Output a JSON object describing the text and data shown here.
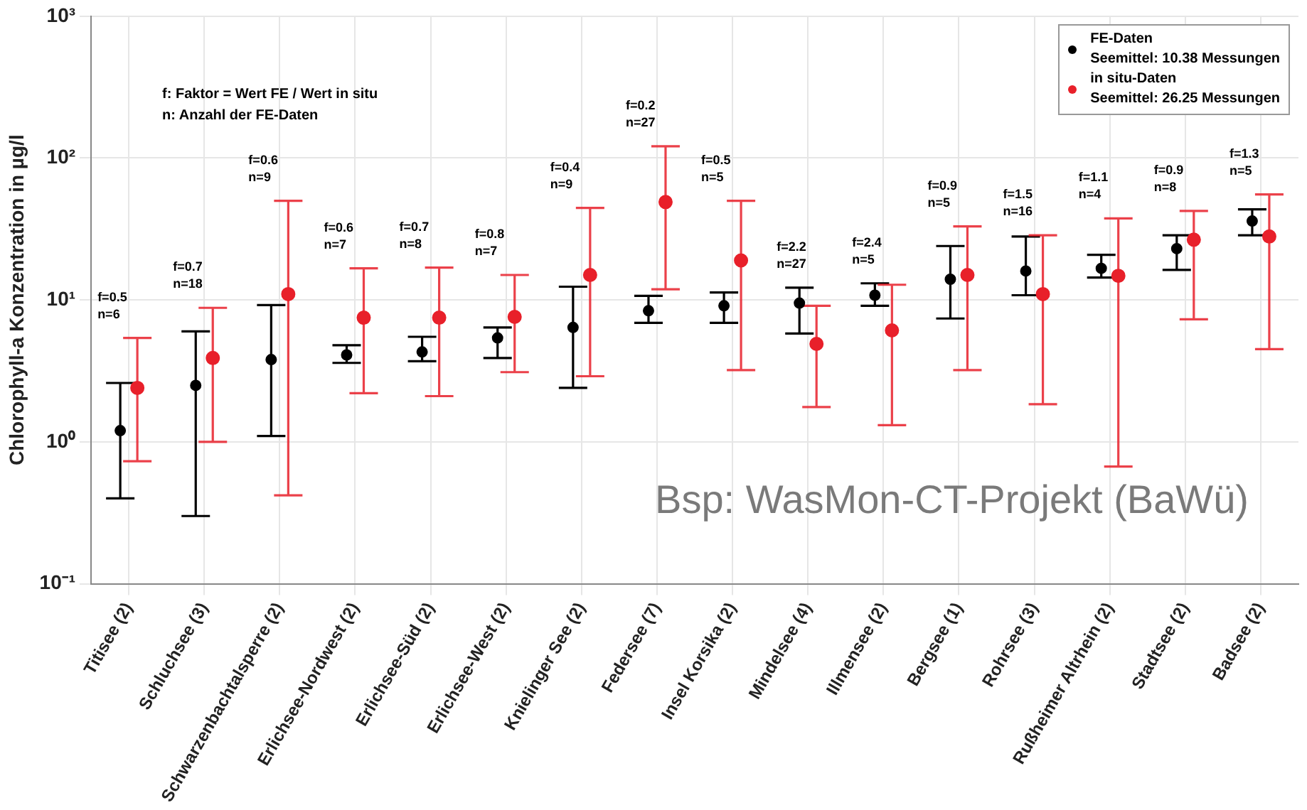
{
  "chart_data": {
    "type": "scatter",
    "ylabel": "Chlorophyll-a Konzentration in µg/l",
    "categories": [
      "Titisee (2)",
      "Schluchsee (3)",
      "Schwarzenbachtalsperre (2)",
      "Erlichsee-Nordwest (2)",
      "Erlichsee-Süd (2)",
      "Erlichsee-West (2)",
      "Knielinger See (2)",
      "Federsee (7)",
      "Insel Korsika (2)",
      "Mindelsee (4)",
      "Illmensee (2)",
      "Bergsee (1)",
      "Rohrsee (3)",
      "Rußheimer Altrhein (2)",
      "Stadtsee (2)",
      "Badsee (2)"
    ],
    "series": [
      {
        "name": "FE-Daten\nSeemittel: 10.38 Messungen",
        "color": "#000000",
        "values": [
          1.2,
          2.5,
          3.8,
          4.1,
          4.3,
          5.4,
          6.4,
          8.4,
          9.1,
          9.5,
          10.8,
          14,
          16,
          16.7,
          23,
          36
        ],
        "errors": [
          [
            0.4,
            2.6
          ],
          [
            0.3,
            6
          ],
          [
            1.1,
            9.2
          ],
          [
            3.6,
            4.8
          ],
          [
            3.7,
            5.5
          ],
          [
            3.9,
            6.4
          ],
          [
            2.4,
            12.4
          ],
          [
            6.9,
            10.7
          ],
          [
            6.9,
            11.3
          ],
          [
            5.8,
            12.2
          ],
          [
            9.1,
            13.1
          ],
          [
            7.4,
            24
          ],
          [
            10.8,
            28
          ],
          [
            14.4,
            20.8
          ],
          [
            16.3,
            28.6
          ],
          [
            28.6,
            43.5
          ]
        ]
      },
      {
        "name": "in situ-Daten\nSeemittel: 26.25 Messungen",
        "color": "#e8202a",
        "values": [
          2.4,
          3.9,
          11,
          7.5,
          7.5,
          7.6,
          15,
          49,
          19,
          4.9,
          6.1,
          15,
          11,
          14.8,
          26.6,
          28
        ],
        "errors": [
          [
            0.73,
            5.4
          ],
          [
            1,
            8.8
          ],
          [
            0.42,
            50
          ],
          [
            2.2,
            16.7
          ],
          [
            2.1,
            16.9
          ],
          [
            3.1,
            15
          ],
          [
            2.9,
            44.5
          ],
          [
            11.9,
            121
          ],
          [
            3.2,
            50
          ],
          [
            1.76,
            9.1
          ],
          [
            1.31,
            12.8
          ],
          [
            3.2,
            33
          ],
          [
            1.84,
            28.6
          ],
          [
            0.67,
            37.6
          ],
          [
            7.3,
            42.4
          ],
          [
            4.5,
            55.5
          ]
        ]
      }
    ],
    "log": "y",
    "ylim": [
      0.1,
      1000
    ],
    "yticks": [
      {
        "value": 0.1,
        "label": "10⁻¹"
      },
      {
        "value": 1,
        "label": "10⁰"
      },
      {
        "value": 10,
        "label": "10¹"
      },
      {
        "value": 100,
        "label": "10²"
      },
      {
        "value": 1000,
        "label": "10³"
      }
    ],
    "grid": true,
    "legend": "top right",
    "marker": "circle",
    "annotations": [
      "f: Faktor = Wert FE / Wert in situ\nn: Anzahl der FE-Daten",
      "Bsp: WasMon-CT-Projekt (BaWü)",
      "f=0.5\nn=6",
      "f=0.7\nn=18",
      "f=0.6\nn=9",
      "f=0.6\nn=7",
      "f=0.7\nn=8",
      "f=0.8\nn=7",
      "f=0.4\nn=9",
      "f=0.2\nn=27",
      "f=0.5\nn=5",
      "f=2.2\nn=27",
      "f=2.4\nn=5",
      "f=0.9\nn=5",
      "f=1.5\nn=16",
      "f=1.1\nn=4",
      "f=0.9\nn=8",
      "f=1.3\nn=5"
    ]
  }
}
